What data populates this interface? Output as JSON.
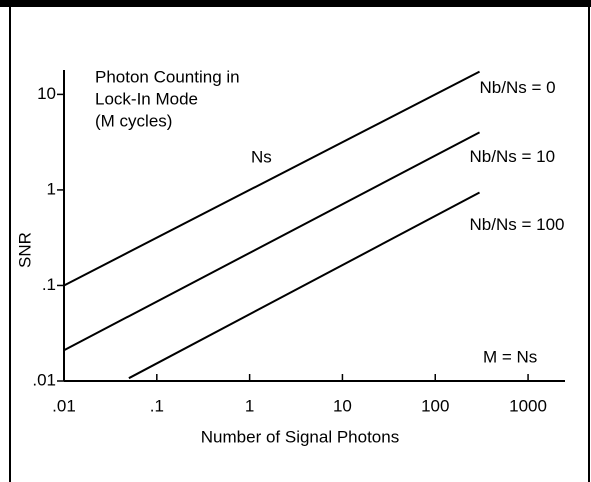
{
  "chart_data": {
    "type": "line",
    "xlabel": "Number of Signal Photons",
    "ylabel": "SNR",
    "xscale": "log",
    "yscale": "log",
    "xlim": [
      0.01,
      2500
    ],
    "ylim": [
      0.01,
      18
    ],
    "xticks": [
      {
        "value": 0.01,
        "label": ".01"
      },
      {
        "value": 0.1,
        "label": ".1"
      },
      1,
      10,
      100,
      1000
    ],
    "yticks": [
      {
        "value": 0.01,
        "label": ".01"
      },
      {
        "value": 0.1,
        "label": ".1"
      },
      1,
      10
    ],
    "color": "#000000",
    "series": [
      {
        "name": "Nb/Ns = 0",
        "x": [
          0.01,
          300
        ],
        "values": [
          0.1,
          17.3
        ]
      },
      {
        "name": "Nb/Ns = 10",
        "x": [
          0.01,
          300
        ],
        "values": [
          0.021,
          4.0
        ]
      },
      {
        "name": "Nb/Ns = 100",
        "x": [
          0.05,
          300
        ],
        "values": [
          0.0107,
          0.94
        ]
      }
    ],
    "annotations": [
      "Photon Counting in",
      "Lock-In Mode",
      "(M cycles)",
      "Ns",
      "M = Ns"
    ]
  }
}
